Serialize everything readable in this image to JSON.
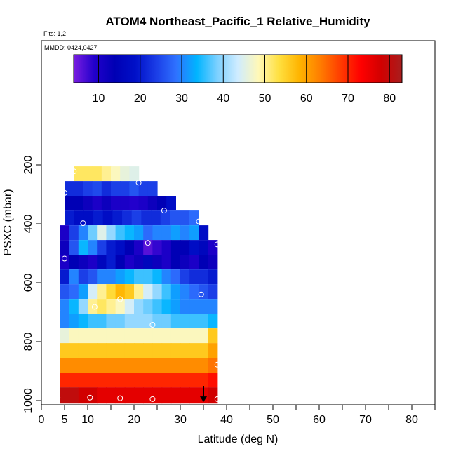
{
  "chart_data": {
    "type": "heatmap",
    "title": "ATOM4 Northeast_Pacific_1 Relative_Humidity",
    "flights_note": "Flts: 1,2",
    "dates_note": "MMDD: 0424,0427",
    "xlabel": "Latitude (deg N)",
    "ylabel": "PSXC (mbar)",
    "xlim": [
      0,
      85
    ],
    "ylim": [
      1000,
      0
    ],
    "x_ticks": [
      0,
      5,
      10,
      20,
      30,
      40,
      50,
      60,
      70,
      80
    ],
    "x_minor_ticks": [
      15,
      25,
      35,
      45,
      55,
      65,
      75,
      85
    ],
    "y_ticks": [
      200,
      400,
      600,
      800,
      1000
    ],
    "colorbar": {
      "min": 4,
      "max": 83,
      "ticks": [
        10,
        20,
        30,
        40,
        50,
        60,
        70,
        80
      ],
      "colors": [
        "#7a1ee0",
        "#2200cc",
        "#0000b4",
        "#0010c8",
        "#1a3ce6",
        "#2f72ff",
        "#00b4ff",
        "#7cd0ff",
        "#cfecff",
        "#fff8b8",
        "#ffe040",
        "#ffb400",
        "#ff7e00",
        "#ff3c00",
        "#ff0000",
        "#d00000",
        "#a81e1e"
      ]
    },
    "rows": [
      {
        "p_top": 205,
        "p_bot": 255,
        "lat_start": 7,
        "lat_end": 21,
        "cells": [
          52,
          52,
          52,
          50,
          48,
          46,
          45
        ]
      },
      {
        "p_top": 255,
        "p_bot": 305,
        "lat_start": 5,
        "lat_end": 25,
        "cells": [
          22,
          22,
          24,
          25,
          22,
          24,
          24,
          26,
          24,
          24
        ]
      },
      {
        "p_top": 305,
        "p_bot": 355,
        "lat_start": 5,
        "lat_end": 29,
        "cells": [
          14,
          14,
          12,
          10,
          12,
          10,
          10,
          9,
          10,
          12,
          14,
          18
        ]
      },
      {
        "p_top": 355,
        "p_bot": 405,
        "lat_start": 5,
        "lat_end": 34,
        "cells": [
          20,
          18,
          18,
          20,
          18,
          20,
          22,
          24,
          22,
          22,
          24,
          26,
          26,
          28
        ]
      },
      {
        "p_top": 405,
        "p_bot": 455,
        "lat_start": 4,
        "lat_end": 36,
        "cells": [
          10,
          24,
          30,
          38,
          45,
          40,
          36,
          34,
          32,
          28,
          30,
          30,
          32,
          30,
          32,
          18
        ]
      },
      {
        "p_top": 455,
        "p_bot": 505,
        "lat_start": 4,
        "lat_end": 38,
        "cells": [
          12,
          26,
          34,
          30,
          24,
          20,
          18,
          14,
          10,
          6,
          8,
          10,
          14,
          14,
          18,
          16,
          10
        ]
      },
      {
        "p_top": 505,
        "p_bot": 555,
        "lat_start": 4,
        "lat_end": 38,
        "cells": [
          10,
          14,
          12,
          10,
          16,
          20,
          14,
          10,
          12,
          16,
          12,
          10,
          14,
          12,
          10,
          14,
          12
        ]
      },
      {
        "p_top": 555,
        "p_bot": 605,
        "lat_start": 4,
        "lat_end": 38,
        "cells": [
          20,
          30,
          24,
          26,
          30,
          30,
          32,
          34,
          36,
          36,
          34,
          30,
          28,
          24,
          22,
          22,
          20
        ]
      },
      {
        "p_top": 605,
        "p_bot": 655,
        "lat_start": 4,
        "lat_end": 38,
        "cells": [
          26,
          28,
          32,
          44,
          50,
          54,
          58,
          56,
          50,
          44,
          40,
          36,
          32,
          30,
          28,
          26,
          24
        ]
      },
      {
        "p_top": 655,
        "p_bot": 705,
        "lat_start": 4,
        "lat_end": 38,
        "cells": [
          30,
          34,
          40,
          50,
          52,
          50,
          48,
          44,
          40,
          38,
          36,
          34,
          32,
          30,
          30,
          30,
          30
        ]
      },
      {
        "p_top": 705,
        "p_bot": 755,
        "lat_start": 4,
        "lat_end": 38,
        "cells": [
          30,
          32,
          34,
          36,
          36,
          38,
          38,
          40,
          40,
          40,
          38,
          38,
          36,
          36,
          36,
          36,
          34
        ]
      },
      {
        "p_top": 755,
        "p_bot": 805,
        "lat_start": 4,
        "lat_end": 38,
        "cells": [
          46,
          48,
          48,
          48,
          48,
          48,
          48,
          48,
          48,
          48,
          48,
          48,
          48,
          48,
          48,
          48,
          56
        ]
      },
      {
        "p_top": 805,
        "p_bot": 855,
        "lat_start": 4,
        "lat_end": 38,
        "cells": [
          56,
          56,
          56,
          56,
          56,
          56,
          56,
          56,
          56,
          56,
          56,
          56,
          56,
          56,
          56,
          56,
          60
        ]
      },
      {
        "p_top": 855,
        "p_bot": 905,
        "lat_start": 4,
        "lat_end": 38,
        "cells": [
          62,
          62,
          62,
          62,
          62,
          62,
          62,
          62,
          62,
          62,
          62,
          62,
          62,
          62,
          62,
          62,
          64
        ]
      },
      {
        "p_top": 905,
        "p_bot": 955,
        "lat_start": 4,
        "lat_end": 38,
        "cells": [
          70,
          70,
          70,
          70,
          70,
          70,
          70,
          70,
          70,
          70,
          70,
          70,
          70,
          70,
          70,
          70,
          72
        ]
      },
      {
        "p_top": 955,
        "p_bot": 1010,
        "lat_start": 4,
        "lat_end": 38,
        "cells": [
          80,
          80,
          78,
          78,
          76,
          76,
          76,
          76,
          76,
          76,
          76,
          76,
          76,
          76,
          76,
          76,
          78
        ]
      }
    ],
    "sample_points": [
      {
        "lat": 7,
        "p": 222
      },
      {
        "lat": 21,
        "p": 260
      },
      {
        "lat": 5,
        "p": 295
      },
      {
        "lat": 26.5,
        "p": 355
      },
      {
        "lat": 9,
        "p": 398
      },
      {
        "lat": 34,
        "p": 392
      },
      {
        "lat": 23,
        "p": 465
      },
      {
        "lat": 38,
        "p": 470
      },
      {
        "lat": 3.5,
        "p": 512
      },
      {
        "lat": 5,
        "p": 518
      },
      {
        "lat": 34.5,
        "p": 640
      },
      {
        "lat": 17,
        "p": 656
      },
      {
        "lat": 11.5,
        "p": 682
      },
      {
        "lat": 3.5,
        "p": 695
      },
      {
        "lat": 24,
        "p": 743
      },
      {
        "lat": 38,
        "p": 878
      },
      {
        "lat": 3.5,
        "p": 990
      },
      {
        "lat": 10.5,
        "p": 990
      },
      {
        "lat": 17,
        "p": 992
      },
      {
        "lat": 24,
        "p": 995
      },
      {
        "lat": 38,
        "p": 995
      }
    ],
    "arrow_marker": {
      "lat": 35,
      "p_from": 950,
      "p_to": 1005
    }
  }
}
